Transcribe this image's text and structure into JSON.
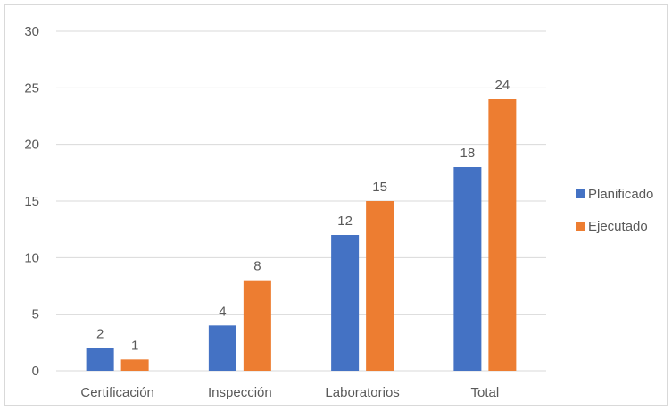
{
  "chart_data": {
    "type": "bar",
    "categories": [
      "Certificación",
      "Inspección",
      "Laboratorios",
      "Total"
    ],
    "series": [
      {
        "name": "Planificado",
        "values": [
          2,
          4,
          12,
          18
        ],
        "color": "#4472C4"
      },
      {
        "name": "Ejecutado",
        "values": [
          1,
          8,
          15,
          24
        ],
        "color": "#ED7D31"
      }
    ],
    "ylim": [
      0,
      30
    ],
    "yticks": [
      "0",
      "5",
      "10",
      "15",
      "20",
      "25",
      "30"
    ],
    "grid": true,
    "legend_position": "right",
    "data_labels": true
  }
}
